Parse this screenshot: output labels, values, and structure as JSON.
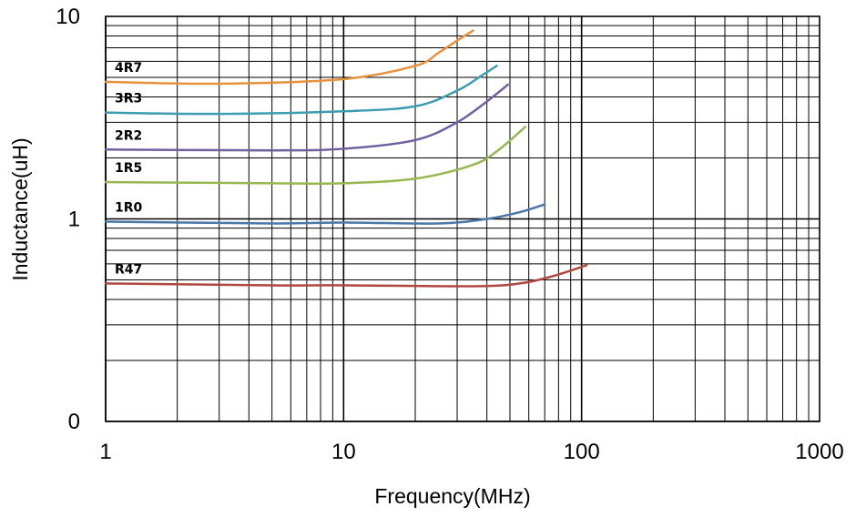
{
  "chart_data": {
    "type": "line",
    "title": "",
    "xlabel": "Frequency(MHz)",
    "ylabel": "Inductance(uH)",
    "x_scale": "log",
    "y_scale": "log",
    "xlim": [
      1,
      1000
    ],
    "ylim": [
      0.1,
      10
    ],
    "grid": true,
    "x_ticks": [
      {
        "value": 1,
        "label": "1"
      },
      {
        "value": 10,
        "label": "10"
      },
      {
        "value": 100,
        "label": "100"
      },
      {
        "value": 1000,
        "label": "1000"
      }
    ],
    "y_ticks": [
      {
        "value": 10,
        "label": "10"
      },
      {
        "value": 1,
        "label": "1"
      },
      {
        "value": 0.1,
        "label": "0"
      }
    ],
    "series": [
      {
        "name": "4R7",
        "color": "#e8913c",
        "points": [
          [
            1,
            4.75
          ],
          [
            3,
            4.65
          ],
          [
            10,
            4.9
          ],
          [
            20,
            5.7
          ],
          [
            25,
            6.6
          ],
          [
            30,
            7.6
          ],
          [
            35,
            8.5
          ]
        ]
      },
      {
        "name": "3R3",
        "color": "#3c9cb0",
        "points": [
          [
            1,
            3.35
          ],
          [
            3,
            3.3
          ],
          [
            10,
            3.4
          ],
          [
            20,
            3.6
          ],
          [
            30,
            4.3
          ],
          [
            38,
            5.1
          ],
          [
            44,
            5.7
          ]
        ]
      },
      {
        "name": "2R2",
        "color": "#7060a0",
        "points": [
          [
            1,
            2.2
          ],
          [
            5,
            2.18
          ],
          [
            10,
            2.22
          ],
          [
            20,
            2.45
          ],
          [
            30,
            3.0
          ],
          [
            40,
            3.8
          ],
          [
            49,
            4.6
          ]
        ]
      },
      {
        "name": "1R5",
        "color": "#96b850",
        "points": [
          [
            1,
            1.52
          ],
          [
            5,
            1.5
          ],
          [
            10,
            1.5
          ],
          [
            20,
            1.58
          ],
          [
            35,
            1.85
          ],
          [
            45,
            2.2
          ],
          [
            58,
            2.85
          ]
        ]
      },
      {
        "name": "1R0",
        "color": "#4878a8",
        "points": [
          [
            1,
            0.97
          ],
          [
            5,
            0.95
          ],
          [
            10,
            0.96
          ],
          [
            25,
            0.95
          ],
          [
            40,
            1.0
          ],
          [
            55,
            1.08
          ],
          [
            70,
            1.18
          ]
        ]
      },
      {
        "name": "R47",
        "color": "#b04840",
        "points": [
          [
            1,
            0.48
          ],
          [
            5,
            0.47
          ],
          [
            10,
            0.47
          ],
          [
            35,
            0.465
          ],
          [
            55,
            0.48
          ],
          [
            75,
            0.52
          ],
          [
            105,
            0.59
          ]
        ]
      }
    ]
  }
}
